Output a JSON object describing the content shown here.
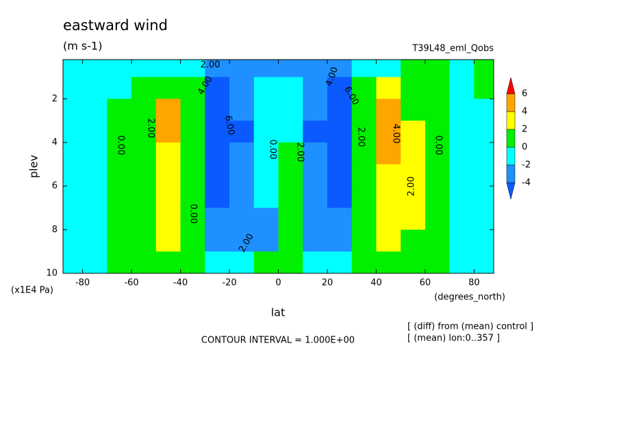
{
  "chart_data": {
    "type": "contour",
    "title": "eastward wind",
    "units": "(m s-1)",
    "dataset": "T39L48_eml_Qobs",
    "x_label": "lat",
    "x_unit_label": "(degrees_north)",
    "y_label": "plev",
    "y_unit_label": "(x1E4 Pa)",
    "contour_interval": "CONTOUR INTERVAL = 1.000E+00",
    "notes": [
      "[ (diff) from (mean) control ]",
      "[ (mean) lon:0..357 ]"
    ],
    "xlim": [
      -88,
      88
    ],
    "ylim": [
      10,
      0.2
    ],
    "xticks": [
      -80,
      -60,
      -40,
      -20,
      0,
      20,
      40,
      60,
      80
    ],
    "yticks": [
      2,
      4,
      6,
      8,
      10
    ],
    "levels": [
      -4,
      -2,
      0,
      2,
      4,
      6
    ],
    "colors": [
      "#0a5aff",
      "#1e90ff",
      "#00ffff",
      "#00f000",
      "#ffff00",
      "#ffa500",
      "#ff0000"
    ],
    "contour_labels": [
      "2.00",
      "4.00",
      "6.00",
      "2.00",
      "0.00",
      "0.00",
      "2.00",
      "0.00",
      "2.00",
      "4.00",
      "6.00",
      "2.00",
      "4.00",
      "2.00",
      "0.00"
    ],
    "x": [
      -85,
      -75,
      -65,
      -55,
      -45,
      -35,
      -25,
      -15,
      -5,
      5,
      15,
      25,
      35,
      45,
      55,
      65,
      75,
      85
    ],
    "y": [
      0.5,
      1.5,
      2.5,
      3.5,
      4.5,
      5.5,
      6.5,
      7.5,
      8.5,
      9.5
    ],
    "z": [
      [
        -1,
        -1,
        -1,
        -0.5,
        -0.5,
        -1,
        -3,
        -4,
        -3,
        -3,
        -4,
        -3,
        -1,
        -0.5,
        0.5,
        0.5,
        -0.5,
        0.5
      ],
      [
        -0.5,
        -1,
        -0.5,
        1,
        1.5,
        0.5,
        -5,
        -3,
        -1,
        -1,
        -3,
        -5,
        0.5,
        2,
        1.5,
        0.5,
        -1,
        0.5
      ],
      [
        -0.5,
        -1,
        0.5,
        1.5,
        4.5,
        0.5,
        -7,
        -4,
        -1,
        -1,
        -4,
        -7,
        0.5,
        4.5,
        1.5,
        0.5,
        -1,
        -0.5
      ],
      [
        -0.5,
        -1,
        0.5,
        1.5,
        4,
        0.5,
        -6,
        -4.5,
        -1,
        -1,
        -4.5,
        -6,
        0.5,
        4.5,
        2.5,
        0.5,
        -1,
        -0.5
      ],
      [
        -0.5,
        -1,
        0.5,
        1.5,
        3,
        0.5,
        -5,
        -3,
        -0.5,
        0.5,
        -3,
        -5,
        0.5,
        4.2,
        2.5,
        0.5,
        -1,
        -0.5
      ],
      [
        -0.5,
        -1,
        0.5,
        1.5,
        2.5,
        0.3,
        -5,
        -2.5,
        -0.5,
        0.5,
        -2.5,
        -5,
        0.3,
        3,
        2.5,
        0.5,
        -1,
        -0.5
      ],
      [
        -0.5,
        -1,
        0.3,
        1.5,
        2.5,
        0.3,
        -4.5,
        -2.5,
        -1,
        0.5,
        -2.5,
        -4.5,
        0.3,
        2.5,
        2.5,
        0.5,
        -1,
        -0.5
      ],
      [
        -0.5,
        -1,
        0.3,
        1.5,
        2.5,
        0.3,
        -3,
        -3,
        -2.5,
        0.5,
        -3,
        -3,
        0.3,
        2.5,
        2,
        0.5,
        -1,
        -0.5
      ],
      [
        -0.5,
        -1,
        0.3,
        1.5,
        2.5,
        0.3,
        -2.5,
        -2.5,
        -2.5,
        0.5,
        -2.5,
        -2.5,
        0.3,
        2.5,
        1.5,
        0.5,
        -1,
        -0.5
      ],
      [
        -0.5,
        -0.5,
        0.5,
        1,
        1,
        0.3,
        -1.5,
        -1.5,
        0.5,
        0.5,
        -1.5,
        -1.5,
        0.3,
        1.5,
        1,
        0.5,
        -1,
        -0.5
      ]
    ]
  }
}
